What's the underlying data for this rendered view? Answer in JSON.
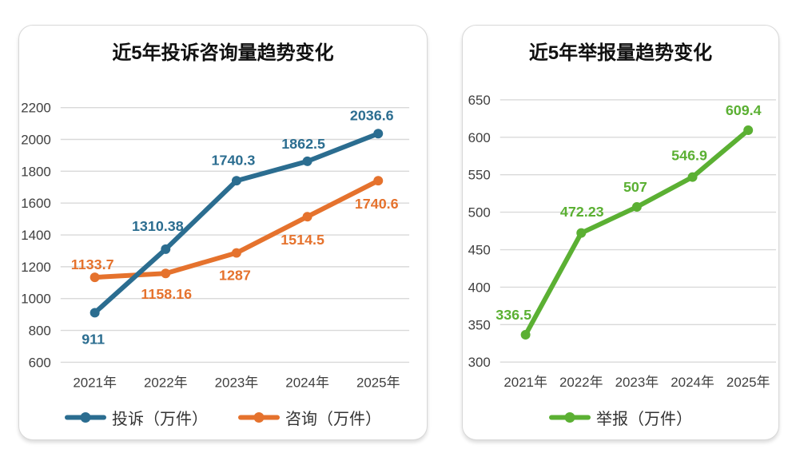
{
  "chart_data": [
    {
      "type": "line",
      "title": "近5年投诉咨询量趋势变化",
      "categories": [
        "2021年",
        "2022年",
        "2023年",
        "2024年",
        "2025年"
      ],
      "series": [
        {
          "name": "投诉（万件）",
          "color": "#2B6D90",
          "values": [
            911,
            1310.38,
            1740.3,
            1862.5,
            2036.6
          ],
          "label_offsets": [
            [
              -2,
              39
            ],
            [
              -10,
              -23
            ],
            [
              -4,
              -20
            ],
            [
              -5,
              -16
            ],
            [
              -8,
              -17
            ]
          ]
        },
        {
          "name": "咨询（万件）",
          "color": "#E5722D",
          "values": [
            1133.7,
            1158.16,
            1287,
            1514.5,
            1740.6
          ],
          "label_offsets": [
            [
              -3,
              -10
            ],
            [
              1,
              32
            ],
            [
              -2,
              34
            ],
            [
              -6,
              35
            ],
            [
              -2,
              35
            ]
          ]
        }
      ],
      "ylim": [
        600,
        2200
      ],
      "yticks": [
        600,
        800,
        1000,
        1200,
        1400,
        1600,
        1800,
        2000,
        2200
      ],
      "grid": true,
      "legend_position": "bottom",
      "markers": true
    },
    {
      "type": "line",
      "title": "近5年举报量趋势变化",
      "categories": [
        "2021年",
        "2022年",
        "2023年",
        "2024年",
        "2025年"
      ],
      "series": [
        {
          "name": "举报（万件）",
          "color": "#5BB033",
          "values": [
            336.5,
            472.23,
            507,
            546.9,
            609.4
          ],
          "label_offsets": [
            [
              -15,
              -19
            ],
            [
              1,
              -21
            ],
            [
              -2,
              -19
            ],
            [
              -4,
              -21
            ],
            [
              -6,
              -19
            ]
          ]
        }
      ],
      "ylim": [
        300,
        650
      ],
      "yticks": [
        300,
        350,
        400,
        450,
        500,
        550,
        600,
        650
      ],
      "grid": true,
      "legend_position": "bottom",
      "markers": true
    }
  ],
  "style": {
    "grid_color": "#D9D9D9",
    "tick_text_color": "#404040",
    "title_color": "#111111",
    "legend_text_color": "#333333",
    "card_border_color": "#D8D8D8",
    "background": "#FFFFFF"
  }
}
